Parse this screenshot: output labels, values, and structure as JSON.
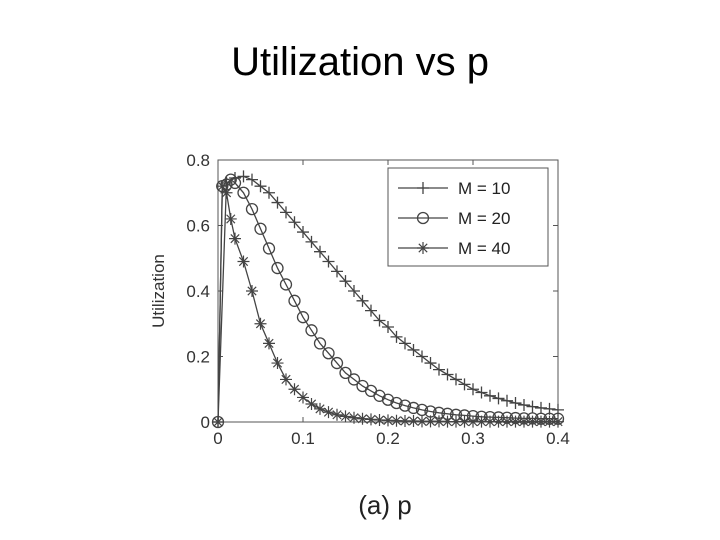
{
  "slide": {
    "title": "Utilization vs p",
    "caption": "(a) p"
  },
  "chart_data": {
    "type": "line",
    "title": "",
    "xlabel": "",
    "ylabel": "Utilization",
    "xlim": [
      0,
      0.4
    ],
    "ylim": [
      0,
      0.8
    ],
    "xticks": [
      "0",
      "0.1",
      "0.2",
      "0.3",
      "0.4"
    ],
    "yticks": [
      "0",
      "0.2",
      "0.4",
      "0.6",
      "0.8"
    ],
    "grid": false,
    "legend_position": "top-right",
    "line_color": "#444444",
    "series": [
      {
        "name": "M = 10",
        "marker": "plus",
        "x": [
          0,
          0.01,
          0.02,
          0.03,
          0.04,
          0.05,
          0.06,
          0.07,
          0.08,
          0.09,
          0.1,
          0.11,
          0.12,
          0.13,
          0.14,
          0.15,
          0.16,
          0.17,
          0.18,
          0.19,
          0.2,
          0.21,
          0.22,
          0.23,
          0.24,
          0.25,
          0.26,
          0.27,
          0.28,
          0.29,
          0.3,
          0.31,
          0.32,
          0.33,
          0.34,
          0.35,
          0.36,
          0.37,
          0.38,
          0.39,
          0.4
        ],
        "y": [
          0,
          0.73,
          0.745,
          0.75,
          0.74,
          0.72,
          0.7,
          0.67,
          0.64,
          0.61,
          0.58,
          0.55,
          0.52,
          0.49,
          0.46,
          0.43,
          0.4,
          0.37,
          0.34,
          0.31,
          0.29,
          0.26,
          0.24,
          0.22,
          0.2,
          0.18,
          0.16,
          0.145,
          0.13,
          0.115,
          0.1,
          0.09,
          0.08,
          0.072,
          0.065,
          0.058,
          0.052,
          0.047,
          0.043,
          0.04,
          0.037
        ]
      },
      {
        "name": "M = 20",
        "marker": "circle",
        "x": [
          0,
          0.005,
          0.01,
          0.015,
          0.02,
          0.03,
          0.04,
          0.05,
          0.06,
          0.07,
          0.08,
          0.09,
          0.1,
          0.11,
          0.12,
          0.13,
          0.14,
          0.15,
          0.16,
          0.17,
          0.18,
          0.19,
          0.2,
          0.21,
          0.22,
          0.23,
          0.24,
          0.25,
          0.26,
          0.27,
          0.28,
          0.29,
          0.3,
          0.31,
          0.32,
          0.33,
          0.34,
          0.35,
          0.36,
          0.37,
          0.38,
          0.39,
          0.4
        ],
        "y": [
          0,
          0.72,
          0.725,
          0.74,
          0.73,
          0.7,
          0.65,
          0.59,
          0.53,
          0.47,
          0.42,
          0.37,
          0.32,
          0.28,
          0.24,
          0.21,
          0.18,
          0.15,
          0.13,
          0.11,
          0.095,
          0.08,
          0.068,
          0.058,
          0.05,
          0.043,
          0.037,
          0.032,
          0.028,
          0.025,
          0.022,
          0.02,
          0.018,
          0.016,
          0.015,
          0.014,
          0.013,
          0.012,
          0.011,
          0.011,
          0.01,
          0.01,
          0.01
        ]
      },
      {
        "name": "M = 40",
        "marker": "star",
        "x": [
          0,
          0.005,
          0.01,
          0.015,
          0.02,
          0.03,
          0.04,
          0.05,
          0.06,
          0.07,
          0.08,
          0.09,
          0.1,
          0.11,
          0.12,
          0.13,
          0.14,
          0.15,
          0.16,
          0.17,
          0.18,
          0.19,
          0.2,
          0.21,
          0.22,
          0.23,
          0.24,
          0.25,
          0.26,
          0.27,
          0.28,
          0.29,
          0.3,
          0.31,
          0.32,
          0.33,
          0.34,
          0.35,
          0.36,
          0.37,
          0.38,
          0.39,
          0.4
        ],
        "y": [
          0,
          0.72,
          0.7,
          0.62,
          0.56,
          0.49,
          0.4,
          0.3,
          0.24,
          0.18,
          0.13,
          0.1,
          0.075,
          0.055,
          0.04,
          0.03,
          0.022,
          0.017,
          0.013,
          0.01,
          0.008,
          0.006,
          0.005,
          0.004,
          0.003,
          0.003,
          0.002,
          0.002,
          0.002,
          0.001,
          0.001,
          0.001,
          0.001,
          0.001,
          0.001,
          0.001,
          0.001,
          0.001,
          0.001,
          0.001,
          0.001,
          0.001,
          0.001
        ]
      }
    ]
  }
}
